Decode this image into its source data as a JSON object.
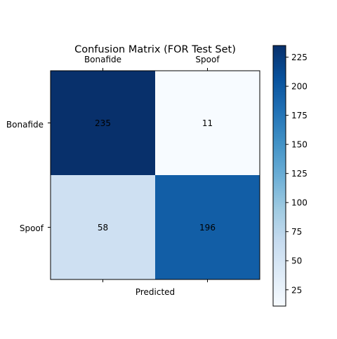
{
  "chart_data": {
    "type": "heatmap",
    "title": "Confusion Matrix (FOR Test Set)",
    "xlabel": "Predicted",
    "ylabel": "",
    "x_categories": [
      "Bonafide",
      "Spoof"
    ],
    "y_categories": [
      "Bonafide",
      "Spoof"
    ],
    "matrix": [
      [
        235,
        11
      ],
      [
        58,
        196
      ]
    ],
    "colormap": "Blues",
    "colorbar": {
      "min": 11,
      "max": 235,
      "ticks": [
        25,
        50,
        75,
        100,
        125,
        150,
        175,
        200,
        225
      ]
    },
    "x_tick_position": "top",
    "grid": false
  }
}
